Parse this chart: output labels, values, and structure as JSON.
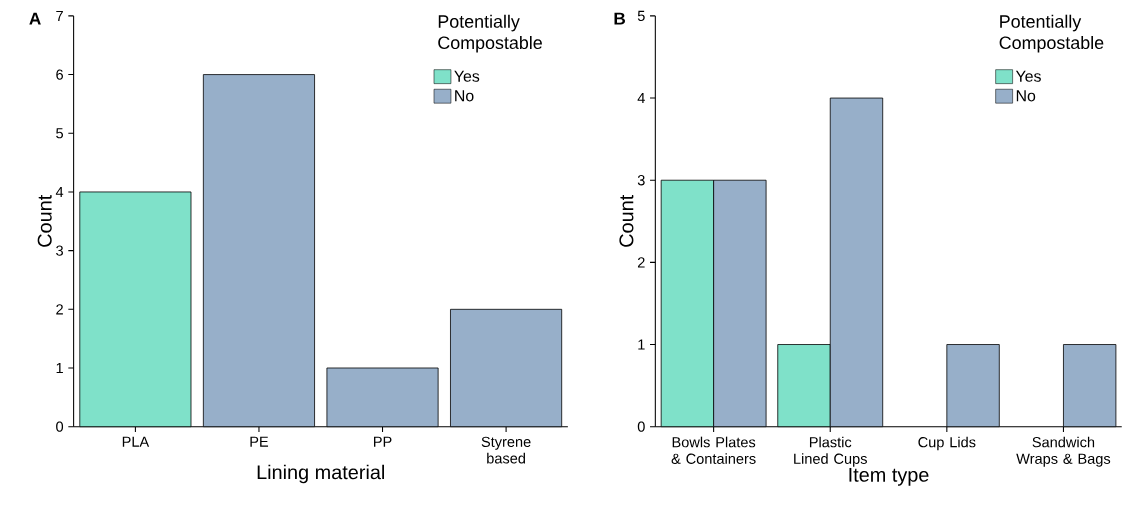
{
  "chart_data": [
    {
      "type": "bar",
      "title": "A",
      "xlabel": "Lining material",
      "ylabel": "Count",
      "stacked": true,
      "categories": [
        "PLA",
        "PE",
        "PP",
        "Styrene based"
      ],
      "series": [
        {
          "name": "Yes",
          "color": "#7fe1c9",
          "values": [
            4,
            null,
            null,
            null
          ]
        },
        {
          "name": "No",
          "color": "#97afc9",
          "values": [
            null,
            6,
            1,
            2
          ]
        }
      ],
      "ylim": [
        0,
        7
      ],
      "yticks": [
        0,
        1,
        2,
        3,
        4,
        5,
        6,
        7
      ],
      "legend": "top right",
      "legend_title": "Potentially Compostable",
      "grid": false
    },
    {
      "type": "bar",
      "title": "B",
      "xlabel": "Item type",
      "ylabel": "Count",
      "categories": [
        "Bowls Plates & Containers",
        "Plastic Lined Cups",
        "Cup Lids",
        "Sandwich Wraps & Bags"
      ],
      "series": [
        {
          "name": "Yes",
          "color": "#7fe1c9",
          "values": [
            3,
            1,
            null,
            null
          ]
        },
        {
          "name": "No",
          "color": "#97afc9",
          "values": [
            3,
            4,
            1,
            1
          ]
        }
      ],
      "ylim": [
        0,
        5
      ],
      "yticks": [
        0,
        1,
        2,
        3,
        4,
        5
      ],
      "legend": "top right",
      "legend_title": "Potentially Compostable",
      "grid": false
    }
  ]
}
